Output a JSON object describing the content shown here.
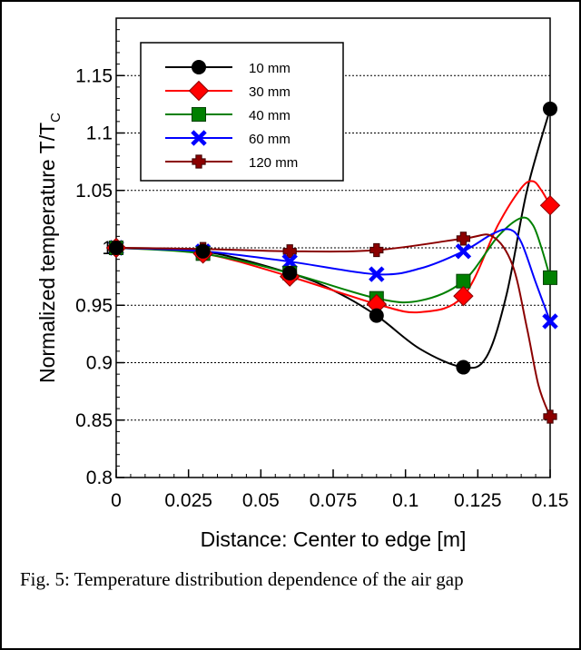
{
  "chart_data": {
    "type": "line",
    "xlabel": "Distance: Center to edge [m]",
    "ylabel_main": "Normalized temperature T/T",
    "ylabel_sub": "C",
    "xlim": [
      0,
      0.15
    ],
    "ylim": [
      0.8,
      1.2
    ],
    "xticks": [
      0,
      0.025,
      0.05,
      0.075,
      0.1,
      0.125,
      0.15
    ],
    "xtick_labels": [
      "0",
      "0.025",
      "0.05",
      "0.075",
      "0.1",
      "0.125",
      "0.15"
    ],
    "yticks": [
      0.8,
      0.85,
      0.9,
      0.95,
      1,
      1.05,
      1.1,
      1.15
    ],
    "ytick_labels": [
      "0.8",
      "0.85",
      "0.9",
      "0.95",
      "1",
      "1.05",
      "1.1",
      "1.15"
    ],
    "grid": "horizontal dotted",
    "legend_position": "top-left",
    "x": [
      0,
      0.03,
      0.06,
      0.09,
      0.12,
      0.15
    ],
    "series": [
      {
        "name": "10 mm",
        "color": "#000000",
        "marker": "circle",
        "values": [
          1.0,
          0.997,
          0.978,
          0.941,
          0.896,
          1.121
        ],
        "curve": [
          [
            0,
            1.0
          ],
          [
            0.03,
            0.997
          ],
          [
            0.06,
            0.978
          ],
          [
            0.075,
            0.963
          ],
          [
            0.09,
            0.941
          ],
          [
            0.105,
            0.912
          ],
          [
            0.12,
            0.896
          ],
          [
            0.128,
            0.905
          ],
          [
            0.135,
            0.96
          ],
          [
            0.142,
            1.05
          ],
          [
            0.15,
            1.121
          ]
        ]
      },
      {
        "name": "30 mm",
        "color": "#ff0000",
        "marker": "diamond",
        "values": [
          1.0,
          0.995,
          0.975,
          0.951,
          0.958,
          1.037
        ],
        "curve": [
          [
            0,
            1.0
          ],
          [
            0.03,
            0.995
          ],
          [
            0.06,
            0.975
          ],
          [
            0.09,
            0.951
          ],
          [
            0.105,
            0.944
          ],
          [
            0.12,
            0.958
          ],
          [
            0.132,
            1.02
          ],
          [
            0.14,
            1.052
          ],
          [
            0.144,
            1.058
          ],
          [
            0.147,
            1.05
          ],
          [
            0.15,
            1.037
          ]
        ]
      },
      {
        "name": "40 mm",
        "color": "#008000",
        "marker": "square",
        "values": [
          1.0,
          0.995,
          0.978,
          0.956,
          0.971,
          0.974
        ],
        "curve": [
          [
            0,
            1.0
          ],
          [
            0.03,
            0.995
          ],
          [
            0.06,
            0.978
          ],
          [
            0.09,
            0.956
          ],
          [
            0.105,
            0.954
          ],
          [
            0.12,
            0.971
          ],
          [
            0.132,
            1.01
          ],
          [
            0.14,
            1.026
          ],
          [
            0.144,
            1.02
          ],
          [
            0.147,
            1.0
          ],
          [
            0.15,
            0.974
          ]
        ]
      },
      {
        "name": "60 mm",
        "color": "#0000ff",
        "marker": "x",
        "values": [
          1.0,
          0.997,
          0.988,
          0.977,
          0.997,
          0.936
        ],
        "curve": [
          [
            0,
            1.0
          ],
          [
            0.03,
            0.997
          ],
          [
            0.06,
            0.988
          ],
          [
            0.09,
            0.977
          ],
          [
            0.105,
            0.982
          ],
          [
            0.12,
            0.997
          ],
          [
            0.13,
            1.012
          ],
          [
            0.136,
            1.016
          ],
          [
            0.14,
            1.005
          ],
          [
            0.145,
            0.97
          ],
          [
            0.15,
            0.936
          ]
        ]
      },
      {
        "name": "120 mm",
        "color": "#8b0000",
        "marker": "cross",
        "values": [
          1.0,
          0.999,
          0.997,
          0.998,
          1.008,
          0.853
        ],
        "curve": [
          [
            0,
            1.0
          ],
          [
            0.03,
            0.999
          ],
          [
            0.06,
            0.997
          ],
          [
            0.09,
            0.998
          ],
          [
            0.12,
            1.008
          ],
          [
            0.13,
            1.01
          ],
          [
            0.137,
            0.985
          ],
          [
            0.142,
            0.93
          ],
          [
            0.146,
            0.88
          ],
          [
            0.15,
            0.853
          ]
        ]
      }
    ]
  },
  "caption": "Fig. 5: Temperature distribution dependence of the air gap"
}
